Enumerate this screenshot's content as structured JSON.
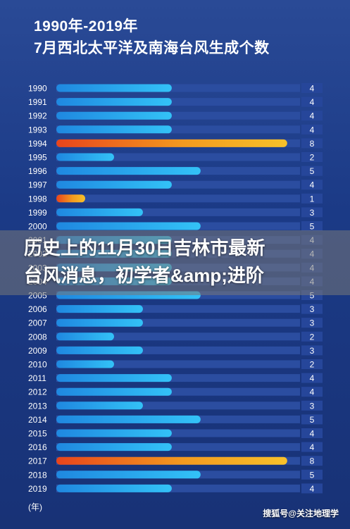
{
  "title_line1": "1990年-2019年",
  "title_line2": "7月西北太平洋及南海台风生成个数",
  "overlay_line1": "历史上的11月30日吉林市最新",
  "overlay_line2": "台风消息，初学者&amp;进阶",
  "watermark": "搜狐号@关注地理学",
  "colors": {
    "blue_bar": "#2fb0f2",
    "orange_bar": "#f2a11f",
    "track": "#2b4da0",
    "label_box": "#26469a"
  },
  "chart_data": {
    "type": "bar",
    "orientation": "horizontal",
    "categories": [
      "1990",
      "1991",
      "1992",
      "1993",
      "1994",
      "1995",
      "1996",
      "1997",
      "1998",
      "1999",
      "2000",
      "2001",
      "2002",
      "2003",
      "2004",
      "2005",
      "2006",
      "2007",
      "2008",
      "2009",
      "2010",
      "2011",
      "2012",
      "2013",
      "2014",
      "2015",
      "2016",
      "2017",
      "2018",
      "2019"
    ],
    "values": [
      4,
      4,
      4,
      4,
      8,
      2,
      5,
      4,
      1,
      3,
      5,
      4,
      4,
      4,
      4,
      5,
      3,
      3,
      2,
      3,
      2,
      4,
      4,
      3,
      5,
      4,
      4,
      8,
      5,
      4
    ],
    "xlim": [
      0,
      8.2
    ],
    "ylabel": "(年)",
    "highlight_max_in_orange": true
  }
}
